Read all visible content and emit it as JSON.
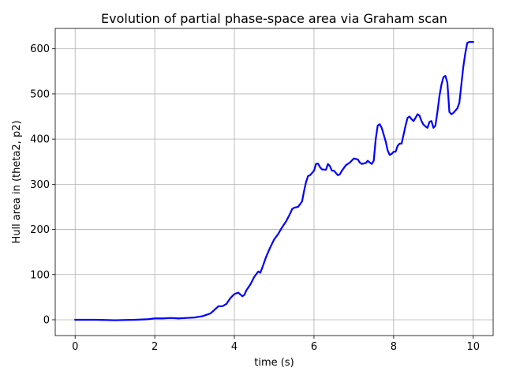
{
  "chart_data": {
    "type": "line",
    "title": "Evolution of partial phase-space area via Graham scan",
    "xlabel": "time (s)",
    "ylabel": "Hull area in (theta2, p2)",
    "xlim": [
      -0.5,
      10.5
    ],
    "ylim": [
      -35,
      645
    ],
    "x_ticks": [
      0,
      2,
      4,
      6,
      8,
      10
    ],
    "y_ticks": [
      0,
      100,
      200,
      300,
      400,
      500,
      600
    ],
    "grid": true,
    "line_color": "#0000ff",
    "series": [
      {
        "x": [
          0,
          0.5,
          1.0,
          1.5,
          1.8,
          2.0,
          2.2,
          2.4,
          2.6,
          2.8,
          3.0,
          3.2,
          3.4,
          3.5,
          3.6,
          3.7,
          3.8,
          3.9,
          4.0,
          4.1,
          4.2,
          4.25,
          4.3,
          4.4,
          4.5,
          4.6,
          4.65,
          4.7,
          4.8,
          4.9,
          5.0,
          5.1,
          5.2,
          5.3,
          5.4,
          5.45,
          5.5,
          5.6,
          5.7,
          5.75,
          5.8,
          5.85,
          5.9,
          6.0,
          6.05,
          6.1,
          6.15,
          6.2,
          6.3,
          6.35,
          6.4,
          6.45,
          6.5,
          6.6,
          6.65,
          6.7,
          6.8,
          6.9,
          7.0,
          7.1,
          7.15,
          7.2,
          7.3,
          7.35,
          7.4,
          7.45,
          7.5,
          7.55,
          7.6,
          7.65,
          7.7,
          7.8,
          7.85,
          7.9,
          7.95,
          8.0,
          8.05,
          8.1,
          8.15,
          8.2,
          8.3,
          8.35,
          8.4,
          8.45,
          8.5,
          8.55,
          8.6,
          8.65,
          8.7,
          8.75,
          8.8,
          8.85,
          8.9,
          8.95,
          9.0,
          9.05,
          9.1,
          9.15,
          9.2,
          9.25,
          9.3,
          9.35,
          9.4,
          9.45,
          9.5,
          9.55,
          9.6,
          9.65,
          9.7,
          9.75,
          9.8,
          9.85,
          9.9,
          9.95,
          10.0
        ],
        "values": [
          0,
          0,
          -1,
          0,
          1,
          3,
          3,
          4,
          3,
          4,
          5,
          8,
          14,
          22,
          30,
          30,
          35,
          48,
          57,
          60,
          52,
          55,
          65,
          78,
          95,
          107,
          104,
          115,
          140,
          160,
          178,
          190,
          205,
          218,
          235,
          245,
          248,
          250,
          262,
          285,
          305,
          318,
          320,
          330,
          345,
          346,
          338,
          333,
          332,
          345,
          340,
          330,
          330,
          320,
          322,
          330,
          342,
          348,
          357,
          355,
          348,
          345,
          347,
          352,
          348,
          345,
          352,
          400,
          430,
          433,
          425,
          395,
          375,
          365,
          367,
          372,
          372,
          385,
          390,
          390,
          430,
          447,
          450,
          444,
          440,
          447,
          455,
          452,
          440,
          432,
          428,
          425,
          438,
          440,
          425,
          430,
          460,
          495,
          520,
          537,
          540,
          525,
          460,
          455,
          458,
          463,
          468,
          480,
          520,
          560,
          590,
          613,
          615,
          615,
          615
        ]
      }
    ]
  }
}
